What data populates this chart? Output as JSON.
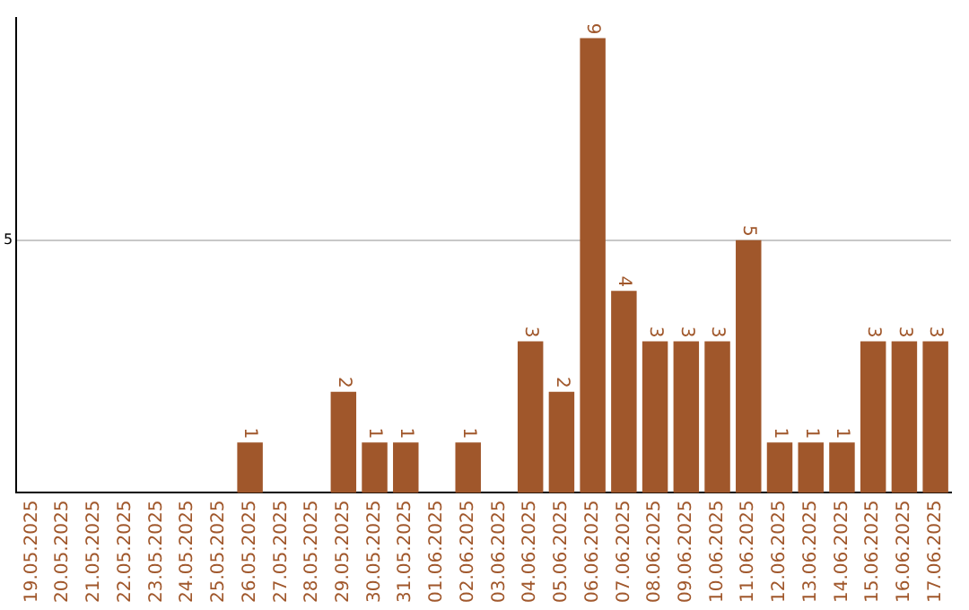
{
  "chart_data": {
    "type": "bar",
    "categories": [
      "19.05.2025",
      "20.05.2025",
      "21.05.2025",
      "22.05.2025",
      "23.05.2025",
      "24.05.2025",
      "25.05.2025",
      "26.05.2025",
      "27.05.2025",
      "28.05.2025",
      "29.05.2025",
      "30.05.2025",
      "31.05.2025",
      "01.06.2025",
      "02.06.2025",
      "03.06.2025",
      "04.06.2025",
      "05.06.2025",
      "06.06.2025",
      "07.06.2025",
      "08.06.2025",
      "09.06.2025",
      "10.06.2025",
      "11.06.2025",
      "12.06.2025",
      "13.06.2025",
      "14.06.2025",
      "15.06.2025",
      "16.06.2025",
      "17.06.2025"
    ],
    "values": [
      0,
      0,
      0,
      0,
      0,
      0,
      0,
      1,
      0,
      0,
      2,
      1,
      1,
      0,
      1,
      0,
      3,
      2,
      9,
      4,
      3,
      3,
      3,
      5,
      1,
      1,
      1,
      3,
      3,
      3
    ],
    "value_labels": [
      null,
      null,
      null,
      null,
      null,
      null,
      null,
      "1",
      null,
      null,
      "2",
      "1",
      "1",
      null,
      "1",
      null,
      "3",
      "2",
      "9",
      "4",
      "3",
      "3",
      "3",
      "5",
      "1",
      "1",
      "1",
      "3",
      "3",
      "3"
    ],
    "color": "#a0572b",
    "ylim": [
      0,
      9.4
    ],
    "yticks": [
      5
    ],
    "grid": "y",
    "legend": false
  }
}
